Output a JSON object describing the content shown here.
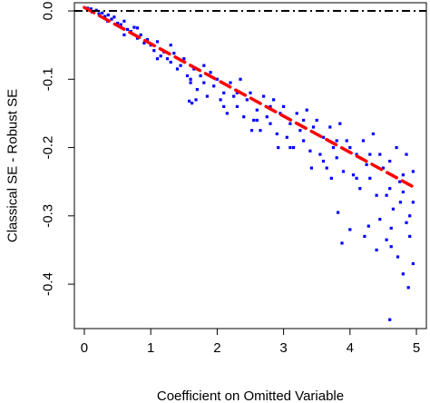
{
  "chart_data": {
    "type": "scatter",
    "xlabel": "Coefficient on Omitted Variable",
    "ylabel": "Classical SE - Robust SE",
    "xlim": [
      -0.15,
      5.15
    ],
    "ylim": [
      -0.465,
      0.012
    ],
    "xticks": [
      0,
      1,
      2,
      3,
      4,
      5
    ],
    "yticks": [
      0.0,
      -0.1,
      -0.2,
      -0.3,
      -0.4
    ],
    "ytick_labels": [
      "0.0",
      "-0.1",
      "-0.2",
      "-0.3",
      "-0.4"
    ],
    "grid": false,
    "point_color": "#0000ff",
    "fit_line": {
      "x": [
        0,
        5
      ],
      "y": [
        0.005,
        -0.26
      ],
      "color": "#ff0000",
      "style": "dashed"
    },
    "reference_line": {
      "y": 0.0,
      "color": "#000000",
      "style": "dash-dot"
    },
    "points": [
      [
        0.05,
        0.004
      ],
      [
        0.1,
        0.003
      ],
      [
        0.12,
        -0.002
      ],
      [
        0.18,
        0.001
      ],
      [
        0.22,
        -0.004
      ],
      [
        0.27,
        -0.003
      ],
      [
        0.31,
        -0.008
      ],
      [
        0.36,
        -0.006
      ],
      [
        0.41,
        -0.012
      ],
      [
        0.45,
        -0.009
      ],
      [
        0.5,
        -0.018
      ],
      [
        0.55,
        -0.02
      ],
      [
        0.6,
        -0.015
      ],
      [
        0.65,
        -0.027
      ],
      [
        0.7,
        -0.03
      ],
      [
        0.75,
        -0.024
      ],
      [
        0.8,
        -0.04
      ],
      [
        0.85,
        -0.035
      ],
      [
        0.9,
        -0.047
      ],
      [
        0.95,
        -0.042
      ],
      [
        1.0,
        -0.05
      ],
      [
        1.05,
        -0.058
      ],
      [
        1.1,
        -0.045
      ],
      [
        1.15,
        -0.066
      ],
      [
        1.2,
        -0.06
      ],
      [
        1.25,
        -0.07
      ],
      [
        1.3,
        -0.075
      ],
      [
        1.35,
        -0.062
      ],
      [
        1.4,
        -0.085
      ],
      [
        1.45,
        -0.08
      ],
      [
        1.5,
        -0.07
      ],
      [
        1.55,
        -0.095
      ],
      [
        1.6,
        -0.1
      ],
      [
        1.65,
        -0.085
      ],
      [
        1.7,
        -0.115
      ],
      [
        1.75,
        -0.095
      ],
      [
        1.8,
        -0.105
      ],
      [
        1.85,
        -0.125
      ],
      [
        1.9,
        -0.09
      ],
      [
        1.95,
        -0.11
      ],
      [
        2.0,
        -0.1
      ],
      [
        2.05,
        -0.13
      ],
      [
        2.1,
        -0.12
      ],
      [
        2.15,
        -0.15
      ],
      [
        2.2,
        -0.105
      ],
      [
        2.25,
        -0.125
      ],
      [
        2.3,
        -0.14
      ],
      [
        2.35,
        -0.1
      ],
      [
        2.4,
        -0.155
      ],
      [
        2.45,
        -0.13
      ],
      [
        2.5,
        -0.12
      ],
      [
        2.55,
        -0.16
      ],
      [
        2.6,
        -0.145
      ],
      [
        2.65,
        -0.175
      ],
      [
        2.7,
        -0.125
      ],
      [
        2.75,
        -0.155
      ],
      [
        2.8,
        -0.165
      ],
      [
        2.85,
        -0.13
      ],
      [
        2.9,
        -0.18
      ],
      [
        2.95,
        -0.15
      ],
      [
        3.0,
        -0.14
      ],
      [
        3.05,
        -0.185
      ],
      [
        3.1,
        -0.165
      ],
      [
        3.15,
        -0.2
      ],
      [
        3.2,
        -0.15
      ],
      [
        3.25,
        -0.175
      ],
      [
        3.3,
        -0.19
      ],
      [
        3.35,
        -0.145
      ],
      [
        3.4,
        -0.205
      ],
      [
        3.45,
        -0.17
      ],
      [
        3.5,
        -0.16
      ],
      [
        3.55,
        -0.21
      ],
      [
        3.6,
        -0.185
      ],
      [
        3.65,
        -0.23
      ],
      [
        3.7,
        -0.17
      ],
      [
        3.75,
        -0.2
      ],
      [
        3.8,
        -0.215
      ],
      [
        3.85,
        -0.165
      ],
      [
        3.9,
        -0.235
      ],
      [
        3.95,
        -0.19
      ],
      [
        4.0,
        -0.2
      ],
      [
        4.05,
        -0.24
      ],
      [
        4.1,
        -0.21
      ],
      [
        4.15,
        -0.26
      ],
      [
        4.2,
        -0.19
      ],
      [
        4.25,
        -0.225
      ],
      [
        4.3,
        -0.245
      ],
      [
        4.35,
        -0.18
      ],
      [
        4.4,
        -0.27
      ],
      [
        4.45,
        -0.21
      ],
      [
        4.5,
        -0.23
      ],
      [
        4.55,
        -0.27
      ],
      [
        4.6,
        -0.22
      ],
      [
        4.65,
        -0.29
      ],
      [
        4.7,
        -0.2
      ],
      [
        4.75,
        -0.25
      ],
      [
        4.8,
        -0.265
      ],
      [
        4.85,
        -0.21
      ],
      [
        4.9,
        -0.3
      ],
      [
        4.95,
        -0.235
      ],
      [
        0.35,
        -0.015
      ],
      [
        0.8,
        -0.025
      ],
      [
        1.3,
        -0.05
      ],
      [
        1.8,
        -0.08
      ],
      [
        2.3,
        -0.12
      ],
      [
        2.8,
        -0.14
      ],
      [
        3.3,
        -0.16
      ],
      [
        3.8,
        -0.19
      ],
      [
        4.3,
        -0.21
      ],
      [
        4.8,
        -0.24
      ],
      [
        0.6,
        -0.035
      ],
      [
        1.1,
        -0.07
      ],
      [
        1.6,
        -0.105
      ],
      [
        2.1,
        -0.14
      ],
      [
        2.6,
        -0.16
      ],
      [
        3.1,
        -0.2
      ],
      [
        3.6,
        -0.22
      ],
      [
        4.1,
        -0.245
      ],
      [
        4.6,
        -0.26
      ],
      [
        4.95,
        -0.28
      ],
      [
        1.58,
        -0.132
      ],
      [
        1.62,
        -0.135
      ],
      [
        1.68,
        -0.13
      ],
      [
        2.52,
        -0.175
      ],
      [
        2.92,
        -0.2
      ],
      [
        3.42,
        -0.23
      ],
      [
        3.72,
        -0.245
      ],
      [
        3.82,
        -0.295
      ],
      [
        3.88,
        -0.34
      ],
      [
        4.0,
        -0.32
      ],
      [
        4.22,
        -0.33
      ],
      [
        4.28,
        -0.315
      ],
      [
        4.4,
        -0.35
      ],
      [
        4.45,
        -0.305
      ],
      [
        4.55,
        -0.335
      ],
      [
        4.62,
        -0.318
      ],
      [
        4.62,
        -0.345
      ],
      [
        4.72,
        -0.36
      ],
      [
        4.8,
        -0.385
      ],
      [
        4.85,
        -0.31
      ],
      [
        4.88,
        -0.405
      ],
      [
        4.95,
        -0.37
      ],
      [
        4.6,
        -0.452
      ],
      [
        4.9,
        -0.33
      ],
      [
        4.76,
        -0.28
      ]
    ]
  }
}
